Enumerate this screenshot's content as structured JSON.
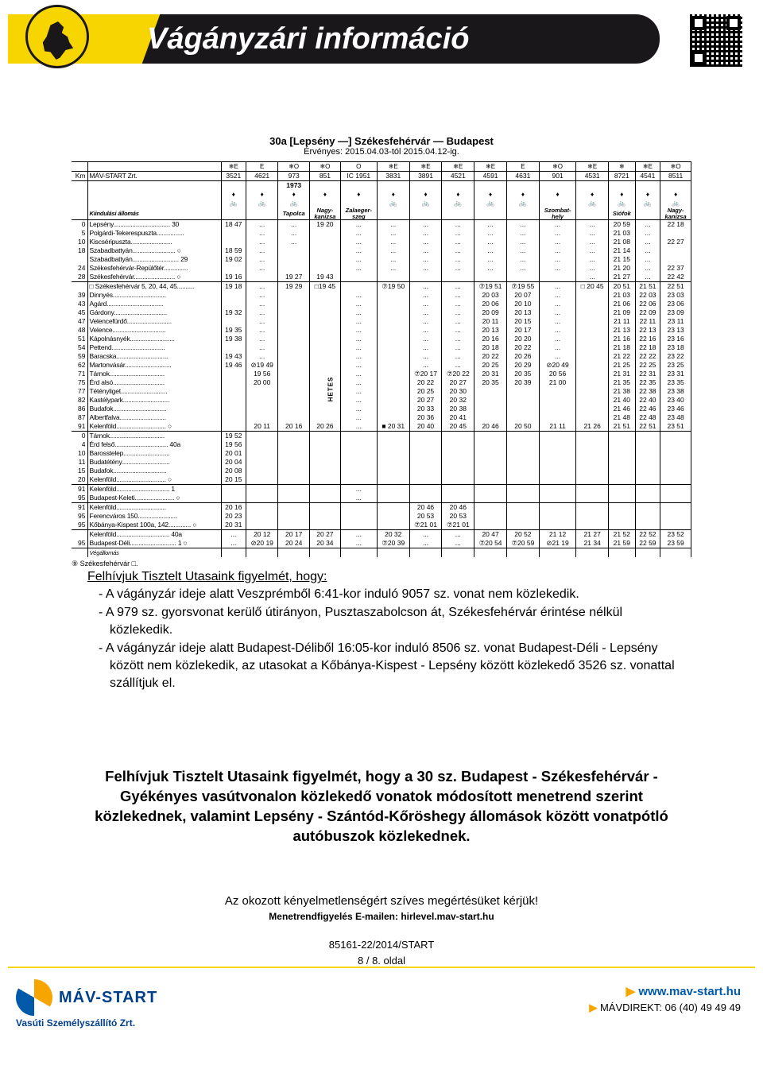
{
  "banner": {
    "title": "Vágányzári információ"
  },
  "timetable": {
    "route_title": "30a [Lepsény —] Székesfehérvár — Budapest",
    "validity": "Érvényes: 2015.04.03-tól 2015.04.12-ig.",
    "km_label": "Km",
    "operator": "MÁV-START Zrt.",
    "origin_row_label": "Kiindulási állomás",
    "end_row_label": "Végállomás",
    "footnote": "⑨ Székesfehérvár □.",
    "trains": [
      "3521",
      "4621",
      "973",
      "851",
      "IC 1951",
      "3831",
      "3891",
      "4521",
      "4591",
      "4631",
      "901",
      "4531",
      "8721",
      "4541",
      "8511"
    ],
    "train_deps": [
      "",
      "",
      "Tapolca",
      "Nagy-\nkanizsa",
      "Zalaeger-\nszeg",
      "",
      "",
      "",
      "",
      "",
      "Szombat-\nhely",
      "",
      "Siófok",
      "",
      "Nagy-\nkanizsa"
    ],
    "third_row": [
      "",
      "",
      "1973",
      "",
      "",
      "",
      "",
      "",
      "",
      "",
      "",
      "",
      "",
      "",
      ""
    ],
    "stations": [
      {
        "km": "0",
        "name": "Lepsény",
        "suffix": "30",
        "cells": [
          "18 47",
          "...",
          "...",
          "19 20",
          "...",
          "...",
          "...",
          "...",
          "...",
          "...",
          "...",
          "...",
          "20 59",
          "...",
          "22 18"
        ]
      },
      {
        "km": "5",
        "name": "Polgárdi-Tekerespuszta",
        "cells": [
          "",
          "...",
          "...",
          "",
          "...",
          "...",
          "...",
          "...",
          "...",
          "...",
          "...",
          "...",
          "21 03",
          "...",
          ""
        ]
      },
      {
        "km": "10",
        "name": "Kiscséripuszta",
        "cells": [
          "",
          "...",
          "...",
          "",
          "...",
          "...",
          "...",
          "...",
          "...",
          "...",
          "...",
          "...",
          "21 08",
          "...",
          "22 27"
        ]
      },
      {
        "km": "18",
        "name": "Szabadbattyán",
        "sym": "○",
        "cells": [
          "18 59",
          "...",
          "",
          "",
          "...",
          "...",
          "...",
          "...",
          "...",
          "...",
          "...",
          "...",
          "21 14",
          "...",
          ""
        ]
      },
      {
        "km": "",
        "name": "Szabadbattyán",
        "suffix": "29",
        "cells": [
          "19 02",
          "...",
          "",
          "",
          "...",
          "...",
          "...",
          "...",
          "...",
          "...",
          "...",
          "...",
          "21 15",
          "...",
          ""
        ]
      },
      {
        "km": "24",
        "name": "Székesfehérvár-Repülőtér",
        "cells": [
          "",
          "...",
          "",
          "",
          "...",
          "...",
          "...",
          "...",
          "...",
          "...",
          "...",
          "...",
          "21 20",
          "...",
          "22 37"
        ]
      },
      {
        "km": "28",
        "name": "Székesfehérvár",
        "sym": "○",
        "cells": [
          "19 16",
          "",
          "19 27",
          "19 43",
          "",
          "",
          "",
          "",
          "",
          "",
          "",
          "...",
          "21 27",
          "...",
          "22 42"
        ]
      },
      {
        "km": "",
        "name": "Székesfehérvár 5, 20, 44, 45",
        "pre": "□",
        "cells": [
          "19 18",
          "...",
          "19 29",
          "□19 45",
          "",
          "⑦19 50",
          "...",
          "...",
          "⑦19 51",
          "⑦19 55",
          "...",
          "□ 20 45",
          "20 51",
          "21 51",
          "22 51"
        ]
      },
      {
        "km": "39",
        "name": "Dinnyés",
        "cells": [
          "",
          "...",
          "",
          "",
          "...",
          "",
          "...",
          "...",
          "20 03",
          "20 07",
          "...",
          "",
          "21 03",
          "22 03",
          "23 03"
        ]
      },
      {
        "km": "43",
        "name": "Agárd",
        "cells": [
          "",
          "...",
          "",
          "",
          "...",
          "",
          "...",
          "...",
          "20 06",
          "20 10",
          "...",
          "",
          "21 06",
          "22 06",
          "23 06"
        ]
      },
      {
        "km": "45",
        "name": "Gárdony",
        "cells": [
          "19 32",
          "...",
          "",
          "",
          "...",
          "",
          "...",
          "...",
          "20 09",
          "20 13",
          "...",
          "",
          "21 09",
          "22 09",
          "23 09"
        ]
      },
      {
        "km": "47",
        "name": "Velencefürdő",
        "cells": [
          "",
          "...",
          "",
          "",
          "...",
          "",
          "...",
          "...",
          "20 11",
          "20 15",
          "...",
          "",
          "21 11",
          "22 11",
          "23 11"
        ]
      },
      {
        "km": "48",
        "name": "Velence",
        "cells": [
          "19 35",
          "...",
          "",
          "",
          "...",
          "",
          "...",
          "...",
          "20 13",
          "20 17",
          "...",
          "",
          "21 13",
          "22 13",
          "23 13"
        ]
      },
      {
        "km": "51",
        "name": "Kápolnásnyék",
        "cells": [
          "19 38",
          "...",
          "",
          "",
          "...",
          "",
          "...",
          "...",
          "20 16",
          "20 20",
          "...",
          "",
          "21 16",
          "22 16",
          "23 16"
        ]
      },
      {
        "km": "54",
        "name": "Pettend",
        "cells": [
          "",
          "...",
          "",
          "",
          "...",
          "",
          "...",
          "...",
          "20 18",
          "20 22",
          "...",
          "",
          "21 18",
          "22 18",
          "23 18"
        ]
      },
      {
        "km": "59",
        "name": "Baracska",
        "cells": [
          "19 43",
          "...",
          "",
          "",
          "...",
          "",
          "...",
          "...",
          "20 22",
          "20 26",
          "...",
          "",
          "21 22",
          "22 22",
          "23 22"
        ]
      },
      {
        "km": "62",
        "name": "Martonvásár",
        "cells": [
          "19 46",
          "⊘19 49",
          "",
          "",
          "...",
          "",
          "...",
          "...",
          "20 25",
          "20 29",
          "⊘20 49",
          "",
          "21 25",
          "22 25",
          "23 25"
        ]
      },
      {
        "km": "71",
        "name": "Tárnok",
        "cells": [
          "",
          "19 56",
          "",
          "",
          "...",
          "",
          "⑦20 17",
          "⑦20 22",
          "20 31",
          "20 35",
          "20 56",
          "",
          "21 31",
          "22 31",
          "23 31"
        ]
      },
      {
        "km": "75",
        "name": "Érd alsó",
        "cells": [
          "",
          "20 00",
          "",
          "",
          "...",
          "",
          "20 22",
          "20 27",
          "20 35",
          "20 39",
          "21 00",
          "",
          "21 35",
          "22 35",
          "23 35"
        ]
      },
      {
        "km": "77",
        "name": "Tétényliget",
        "cells": [
          "",
          "",
          "",
          "",
          "...",
          "",
          "20 25",
          "20 30",
          "",
          "",
          "",
          "",
          "21 38",
          "22 38",
          "23 38"
        ]
      },
      {
        "km": "82",
        "name": "Kastélypark",
        "cells": [
          "",
          "",
          "",
          "",
          "...",
          "",
          "20 27",
          "20 32",
          "",
          "",
          "",
          "",
          "21 40",
          "22 40",
          "23 40"
        ]
      },
      {
        "km": "86",
        "name": "Budafok",
        "cells": [
          "",
          "",
          "",
          "",
          "...",
          "",
          "20 33",
          "20 38",
          "",
          "",
          "",
          "",
          "21 46",
          "22 46",
          "23 46"
        ]
      },
      {
        "km": "87",
        "name": "Albertfalva",
        "cells": [
          "",
          "",
          "",
          "",
          "...",
          "",
          "20 36",
          "20 41",
          "",
          "",
          "",
          "",
          "21 48",
          "22 48",
          "23 48"
        ]
      },
      {
        "km": "91",
        "name": "Kelenföld",
        "sym": "○",
        "cells": [
          "",
          "20 11",
          "20 16",
          "20 26",
          "...",
          "■ 20 31",
          "20 40",
          "20 45",
          "20 46",
          "20 50",
          "21 11",
          "21 26",
          "21 51",
          "22 51",
          "23 51"
        ]
      },
      {
        "km": "0",
        "name": "Tárnok",
        "cells": [
          "19 52",
          "",
          "",
          "",
          "",
          "",
          "",
          "",
          "",
          "",
          "",
          "",
          "",
          "",
          ""
        ]
      },
      {
        "km": "4",
        "name": "Érd felső",
        "suffix": "40a",
        "cells": [
          "19 56",
          "",
          "",
          "",
          "",
          "",
          "",
          "",
          "",
          "",
          "",
          "",
          "",
          "",
          ""
        ]
      },
      {
        "km": "10",
        "name": "Barosstelep",
        "cells": [
          "20 01",
          "",
          "",
          "",
          "",
          "",
          "",
          "",
          "",
          "",
          "",
          "",
          "",
          "",
          ""
        ]
      },
      {
        "km": "11",
        "name": "Budatétény",
        "cells": [
          "20 04",
          "",
          "",
          "",
          "",
          "",
          "",
          "",
          "",
          "",
          "",
          "",
          "",
          "",
          ""
        ]
      },
      {
        "km": "15",
        "name": "Budafok",
        "cells": [
          "20 08",
          "",
          "",
          "",
          "",
          "",
          "",
          "",
          "",
          "",
          "",
          "",
          "",
          "",
          ""
        ]
      },
      {
        "km": "20",
        "name": "Kelenföld",
        "sym": "○",
        "cells": [
          "20 15",
          "",
          "",
          "",
          "",
          "",
          "",
          "",
          "",
          "",
          "",
          "",
          "",
          "",
          ""
        ]
      },
      {
        "km": "91",
        "name": "Kelenföld",
        "suffix": "1",
        "cells": [
          "",
          "",
          "",
          "",
          "...",
          "",
          "",
          "",
          "",
          "",
          "",
          "",
          "",
          "",
          ""
        ]
      },
      {
        "km": "95",
        "name": "Budapest-Keleti",
        "sym": "○",
        "cells": [
          "",
          "",
          "",
          "",
          "...",
          "",
          "",
          "",
          "",
          "",
          "",
          "",
          "",
          "",
          ""
        ]
      },
      {
        "km": "91",
        "name": "Kelenföld",
        "cells": [
          "20 16",
          "",
          "",
          "",
          "",
          "",
          "20 46",
          "20 46",
          "",
          "",
          "",
          "",
          "",
          "",
          ""
        ]
      },
      {
        "km": "95",
        "name": "Ferencváros 150",
        "cells": [
          "20 23",
          "",
          "",
          "",
          "",
          "",
          "20 53",
          "20 53",
          "",
          "",
          "",
          "",
          "",
          "",
          ""
        ]
      },
      {
        "km": "95",
        "name": "Kőbánya-Kispest 100a, 142",
        "sym": "○",
        "cells": [
          "20 31",
          "",
          "",
          "",
          "",
          "",
          "⑦21 01",
          "⑦21 01",
          "",
          "",
          "",
          "",
          "",
          "",
          ""
        ]
      },
      {
        "km": "",
        "name": "Kelenföld",
        "suffix": "40a",
        "cells": [
          "...",
          "20 12",
          "20 17",
          "20 27",
          "...",
          "20 32",
          "...",
          "...",
          "20 47",
          "20 52",
          "21 12",
          "21 27",
          "21 52",
          "22 52",
          "23 52"
        ]
      },
      {
        "km": "95",
        "name": "Budapest-Déli",
        "suffix": "1",
        "sym": "○",
        "cells": [
          "...",
          "⊘20 19",
          "20 24",
          "20 34",
          "...",
          "⑦20 39",
          "...",
          "...",
          "⑦20 54",
          "⑦20 59",
          "⊘21 19",
          "21 34",
          "21 59",
          "22 59",
          "23 59"
        ]
      }
    ]
  },
  "notice": {
    "lead": "Felhívjuk Tisztelt Utasaink figyelmét, hogy:",
    "items": [
      "- A vágányzár ideje alatt Veszprémből 6:41-kor induló 9057 sz. vonat nem közlekedik.",
      "- A 979 sz. gyorsvonat kerülő útirányon, Pusztaszabolcson át,  Székesfehérvár érintése nélkül közlekedik.",
      "- A vágányzár ideje alatt Budapest-Déliből 16:05-kor induló 8506 sz. vonat Budapest-Déli -  Lepsény között nem közlekedik, az utasokat a Kőbánya-Kispest - Lepsény között közlekedő 3526 sz. vonattal szállítjuk el."
    ],
    "bold": "Felhívjuk Tisztelt Utasaink figyelmét, hogy a 30 sz. Budapest - Székesfehérvár - Gyékényes vasútvonalon közlekedő vonatok módosított menetrend szerint közlekednek, valamint Lepsény - Szántód-Kőröshegy állomások között vonatpótló autóbuszok közlekednek.",
    "apology": "Az okozott kényelmetlenségért szíves megértésüket kérjük!",
    "subscribe": "Menetrendfigyelés E-mailen: hirlevel.mav-start.hu"
  },
  "footer": {
    "ref": "85161-22/2014/START",
    "page": "8 / 8. oldal",
    "logo_text": "MÁV-START",
    "logo_sub": "Vasúti Személyszállító Zrt.",
    "web": "www.mav-start.hu",
    "phone_label": "MÁVDIREKT:",
    "phone": "06 (40) 49 49 49"
  },
  "colors": {
    "yellow": "#f7d500",
    "black": "#1a171b",
    "blue": "#005aa9",
    "orange": "#f7a500"
  }
}
